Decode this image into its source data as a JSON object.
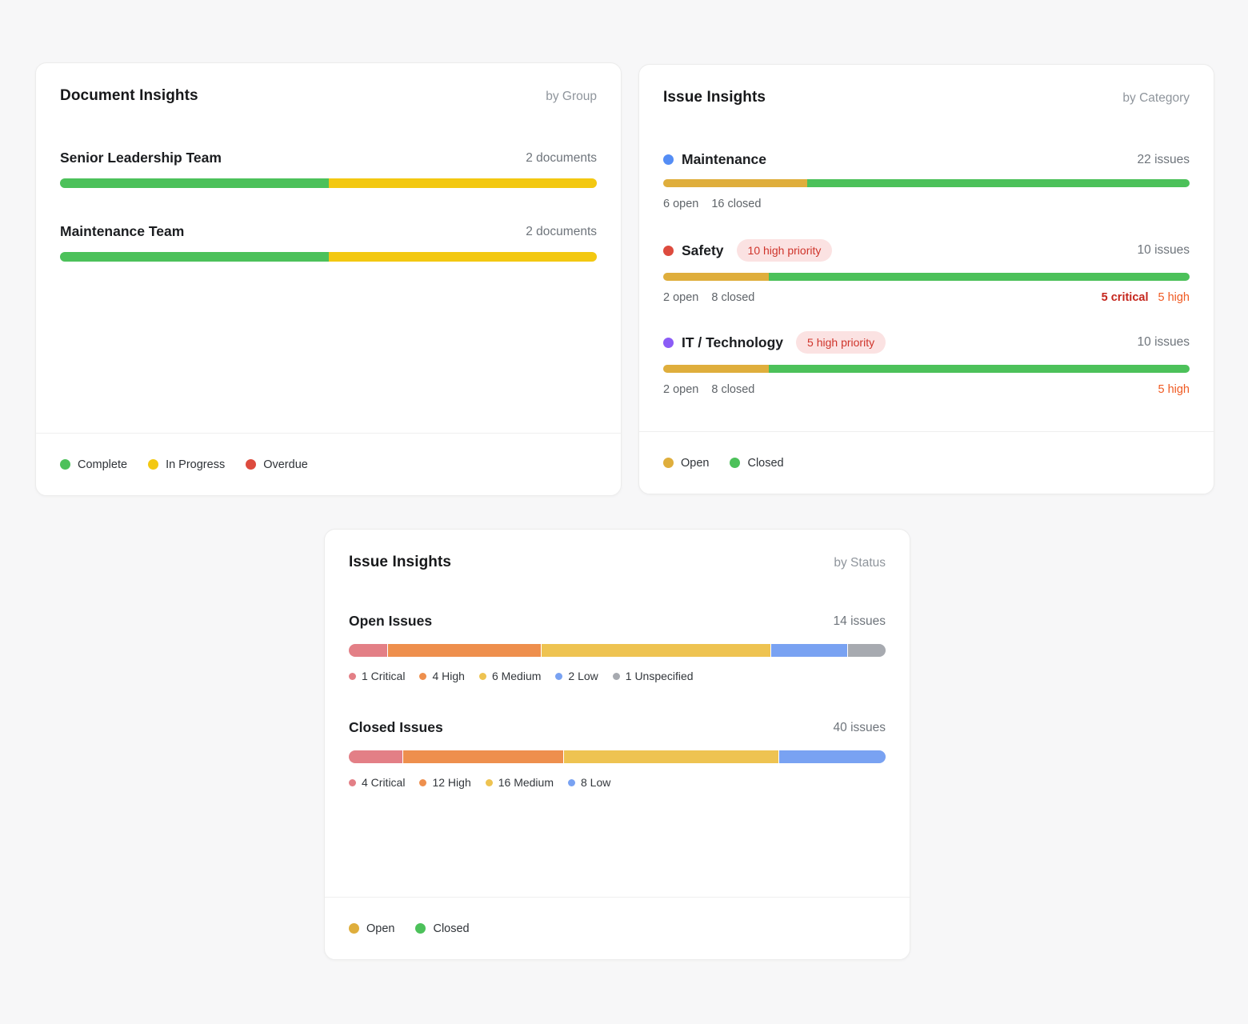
{
  "colors": {
    "green": "#4cc15a",
    "bright_yellow": "#f3c811",
    "amber_open": "#dfae3c",
    "red": "#dd4b3e",
    "blue": "#548df5",
    "purple": "#8b5cf6",
    "seg_critical": "#e37f86",
    "seg_high": "#ee8f4d",
    "seg_medium": "#eec351",
    "seg_low": "#79a2f2",
    "seg_unspecified": "#a7aab0",
    "critical_text": "#c5261d",
    "high_text": "#f05a22",
    "badge_bg": "#fbe2e2",
    "badge_text": "#cf342b"
  },
  "documents": {
    "title": "Document Insights",
    "subtitle": "by Group",
    "rows": [
      {
        "label": "Senior Leadership Team",
        "count": "2 documents",
        "segments": [
          {
            "color": "#4cc15a",
            "pct": 50
          },
          {
            "color": "#f3c811",
            "pct": 50
          }
        ]
      },
      {
        "label": "Maintenance Team",
        "count": "2 documents",
        "segments": [
          {
            "color": "#4cc15a",
            "pct": 50
          },
          {
            "color": "#f3c811",
            "pct": 50
          }
        ]
      }
    ],
    "legend": [
      {
        "label": "Complete",
        "color": "#4cc15a"
      },
      {
        "label": "In Progress",
        "color": "#f3c811"
      },
      {
        "label": "Overdue",
        "color": "#dd4b3e"
      }
    ]
  },
  "categories": {
    "title": "Issue Insights",
    "subtitle": "by Category",
    "rows": [
      {
        "dot": "#548df5",
        "label": "Maintenance",
        "count": "22 issues",
        "segments": [
          {
            "color": "#dfae3c",
            "pct": 27.3
          },
          {
            "color": "#4cc15a",
            "pct": 72.7
          }
        ],
        "open": "6 open",
        "closed": "16 closed"
      },
      {
        "dot": "#dd4b3e",
        "label": "Safety",
        "badge": "10 high priority",
        "count": "10 issues",
        "segments": [
          {
            "color": "#dfae3c",
            "pct": 20
          },
          {
            "color": "#4cc15a",
            "pct": 80
          }
        ],
        "open": "2 open",
        "closed": "8 closed",
        "critical": "5 critical",
        "high": "5 high"
      },
      {
        "dot": "#8b5cf6",
        "label": "IT / Technology",
        "badge": "5 high priority",
        "count": "10 issues",
        "segments": [
          {
            "color": "#dfae3c",
            "pct": 20
          },
          {
            "color": "#4cc15a",
            "pct": 80
          }
        ],
        "open": "2 open",
        "closed": "8 closed",
        "high": "5 high"
      }
    ],
    "legend": [
      {
        "label": "Open",
        "color": "#dfae3c"
      },
      {
        "label": "Closed",
        "color": "#4cc15a"
      }
    ]
  },
  "status": {
    "title": "Issue Insights",
    "subtitle": "by Status",
    "rows": [
      {
        "label": "Open Issues",
        "count": "14 issues",
        "segments": [
          {
            "color": "#e37f86",
            "pct": 7.1
          },
          {
            "color": "#ee8f4d",
            "pct": 28.6
          },
          {
            "color": "#eec351",
            "pct": 42.9
          },
          {
            "color": "#79a2f2",
            "pct": 14.3
          },
          {
            "color": "#a7aab0",
            "pct": 7.1
          }
        ],
        "legend": [
          {
            "label": "1 Critical",
            "color": "#e37f86"
          },
          {
            "label": "4 High",
            "color": "#ee8f4d"
          },
          {
            "label": "6 Medium",
            "color": "#eec351"
          },
          {
            "label": "2 Low",
            "color": "#79a2f2"
          },
          {
            "label": "1 Unspecified",
            "color": "#a7aab0"
          }
        ]
      },
      {
        "label": "Closed Issues",
        "count": "40 issues",
        "segments": [
          {
            "color": "#e37f86",
            "pct": 10
          },
          {
            "color": "#ee8f4d",
            "pct": 30
          },
          {
            "color": "#eec351",
            "pct": 40
          },
          {
            "color": "#79a2f2",
            "pct": 20
          }
        ],
        "legend": [
          {
            "label": "4 Critical",
            "color": "#e37f86"
          },
          {
            "label": "12 High",
            "color": "#ee8f4d"
          },
          {
            "label": "16 Medium",
            "color": "#eec351"
          },
          {
            "label": "8 Low",
            "color": "#79a2f2"
          }
        ]
      }
    ],
    "legend": [
      {
        "label": "Open",
        "color": "#dfae3c"
      },
      {
        "label": "Closed",
        "color": "#4cc15a"
      }
    ]
  },
  "chart_data": [
    {
      "type": "bar",
      "title": "Document Insights by Group",
      "categories": [
        "Senior Leadership Team",
        "Maintenance Team"
      ],
      "series": [
        {
          "name": "Complete",
          "values": [
            1,
            1
          ]
        },
        {
          "name": "In Progress",
          "values": [
            1,
            1
          ]
        },
        {
          "name": "Overdue",
          "values": [
            0,
            0
          ]
        }
      ],
      "totals": [
        2,
        2
      ],
      "unit": "documents",
      "legend_position": "bottom"
    },
    {
      "type": "bar",
      "title": "Issue Insights by Category",
      "categories": [
        "Maintenance",
        "Safety",
        "IT / Technology"
      ],
      "series": [
        {
          "name": "Open",
          "values": [
            6,
            2,
            2
          ]
        },
        {
          "name": "Closed",
          "values": [
            16,
            8,
            8
          ]
        }
      ],
      "totals": [
        22,
        10,
        10
      ],
      "unit": "issues",
      "annotations": [
        null,
        "10 high priority; 5 critical, 5 high",
        "5 high priority; 5 high"
      ],
      "legend_position": "bottom"
    },
    {
      "type": "bar",
      "title": "Issue Insights by Status",
      "categories": [
        "Open Issues",
        "Closed Issues"
      ],
      "series": [
        {
          "name": "Critical",
          "values": [
            1,
            4
          ]
        },
        {
          "name": "High",
          "values": [
            4,
            12
          ]
        },
        {
          "name": "Medium",
          "values": [
            6,
            16
          ]
        },
        {
          "name": "Low",
          "values": [
            2,
            8
          ]
        },
        {
          "name": "Unspecified",
          "values": [
            1,
            0
          ]
        }
      ],
      "totals": [
        14,
        40
      ],
      "unit": "issues",
      "legend_position": "bottom"
    }
  ]
}
